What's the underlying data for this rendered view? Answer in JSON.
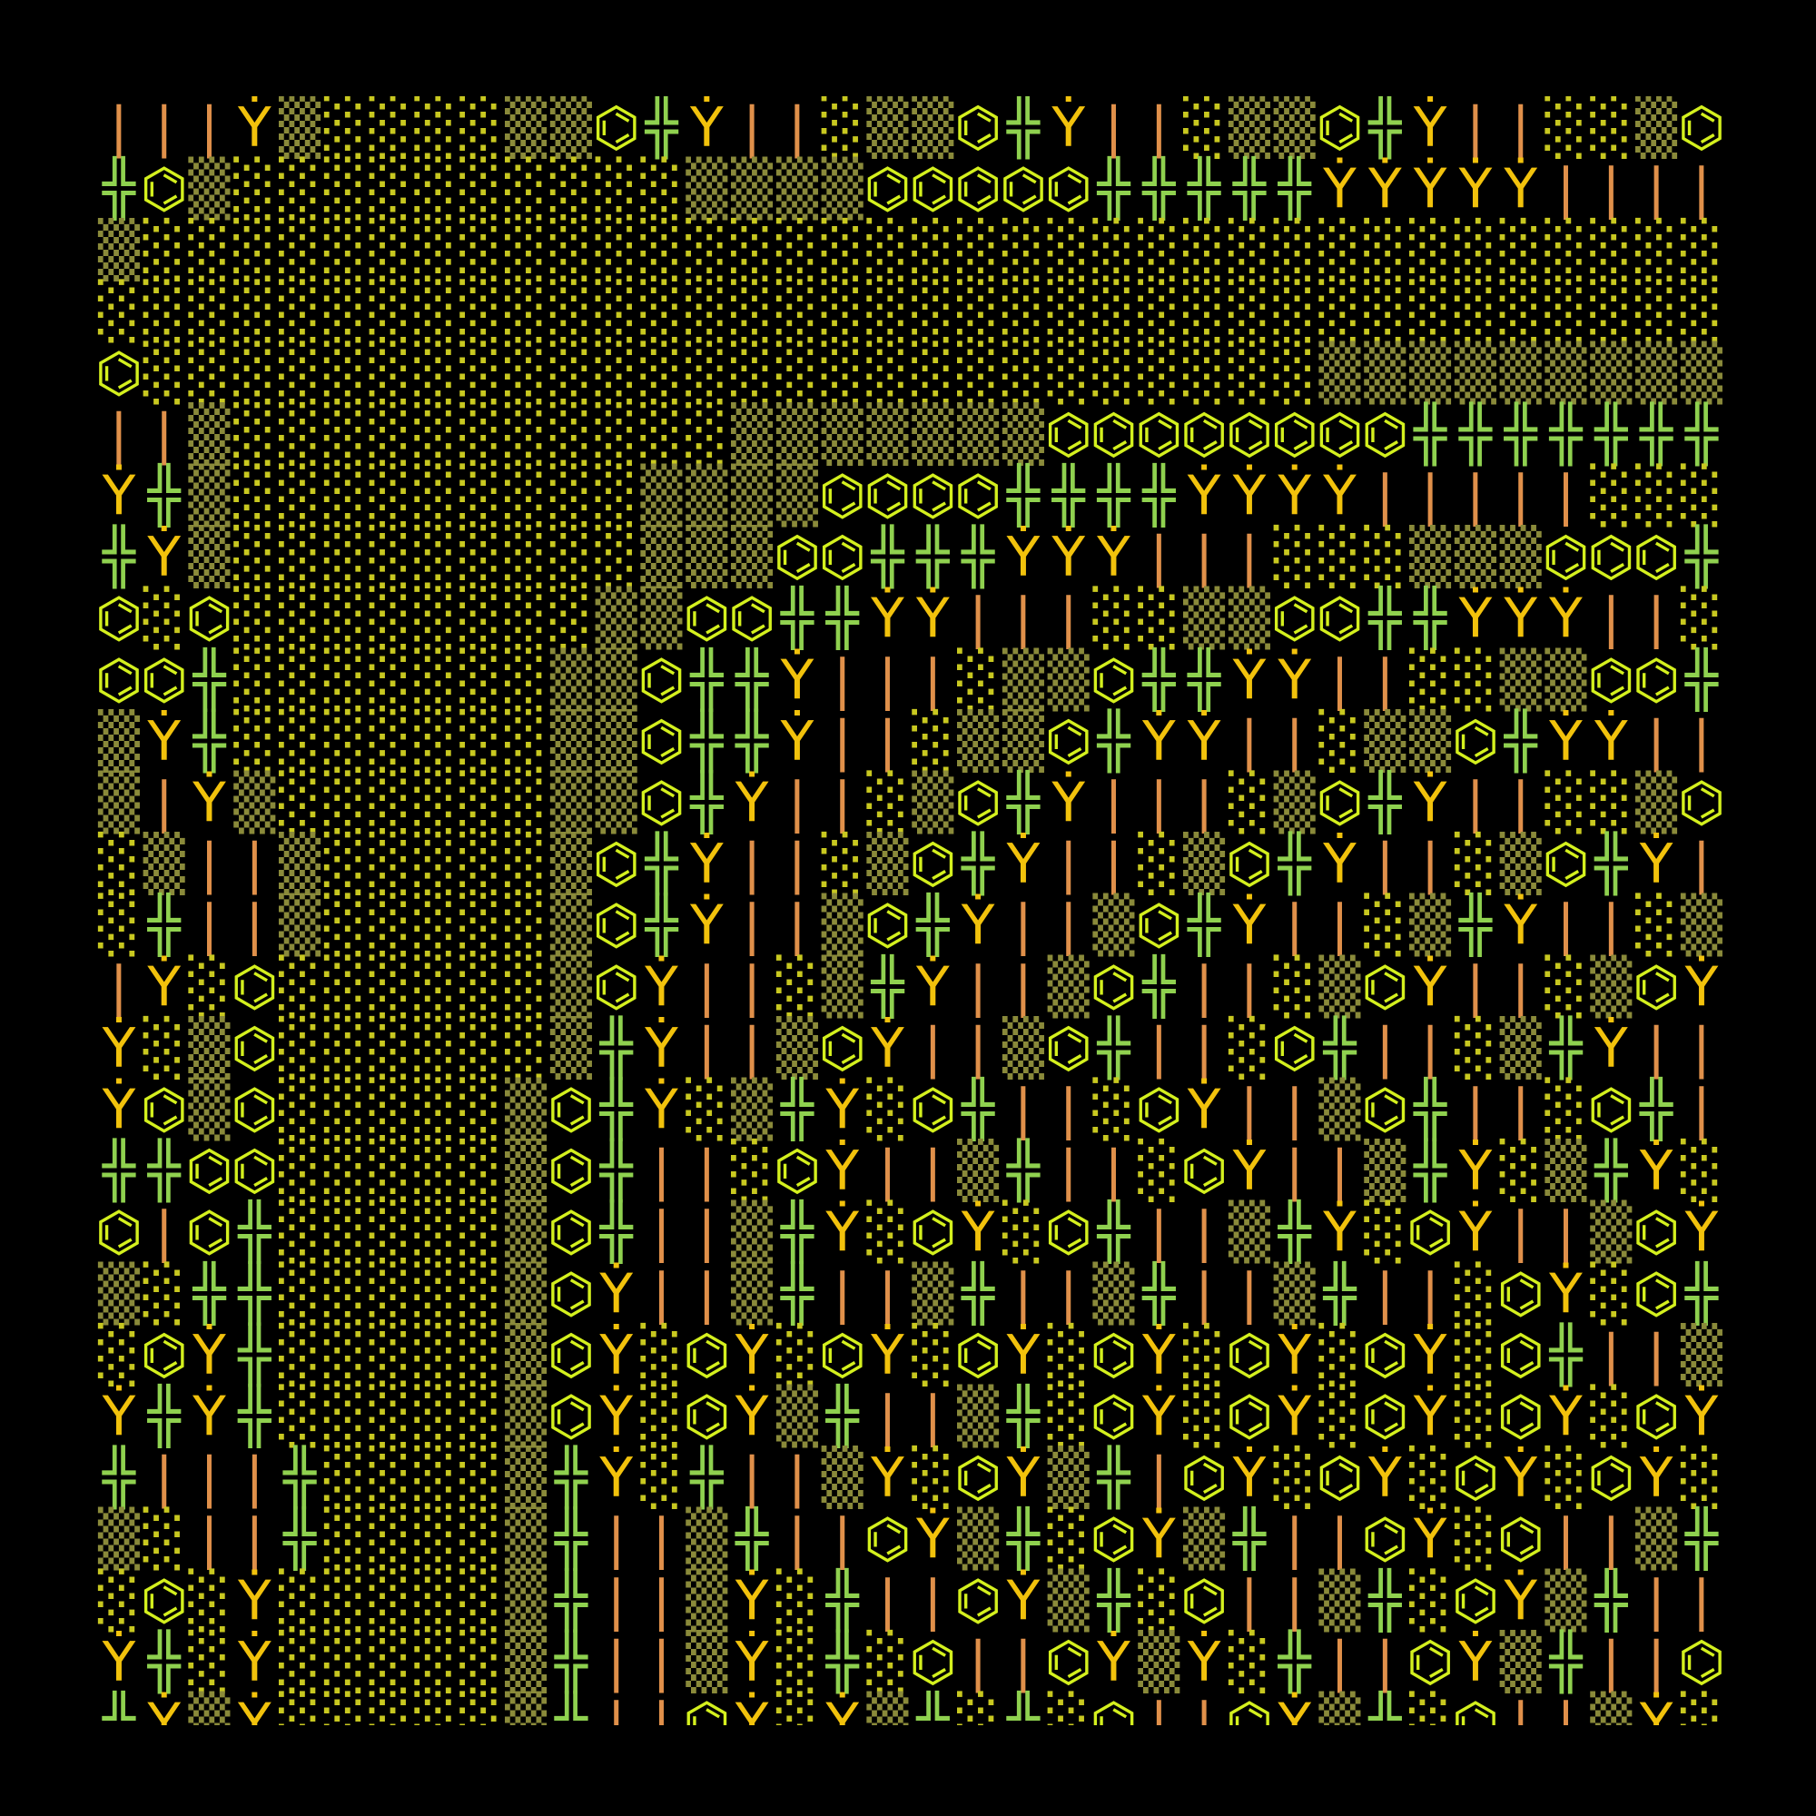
{
  "grid": {
    "colors": {
      "|": "#e0904a",
      "Ẏ": "#f2c20c",
      "╬": "#8fd14f",
      "⌬": "#d4f01e",
      "▒": "#8a8a3a",
      "░": "#c8c820"
    },
    "rows": [
      [
        "|",
        "|",
        "|",
        "Ẏ",
        "▒",
        "░",
        "░",
        "░",
        "░",
        "▒",
        "▒",
        "⌬",
        "╬",
        "Ẏ",
        "|",
        "|",
        "░",
        "▒",
        "▒",
        "⌬",
        "╬",
        "Ẏ",
        "|",
        "|",
        "░",
        "▒",
        "▒",
        "⌬",
        "╬",
        "Ẏ",
        "|",
        "|",
        "░",
        "░",
        "▒",
        "⌬"
      ],
      [
        "╬",
        "⌬",
        "▒",
        "░",
        "░",
        "░",
        "░",
        "░",
        "░",
        "░",
        "░",
        "░",
        "░",
        "▒",
        "▒",
        "▒",
        "▒",
        "⌬",
        "⌬",
        "⌬",
        "⌬",
        "⌬",
        "╬",
        "╬",
        "╬",
        "╬",
        "╬",
        "Ẏ",
        "Ẏ",
        "Ẏ",
        "Ẏ",
        "Ẏ",
        "|",
        "|",
        "|",
        "|"
      ],
      [
        "▒",
        "░",
        "░",
        "░",
        "░",
        "░",
        "░",
        "░",
        "░",
        "░",
        "░",
        "░",
        "░",
        "░",
        "░",
        "░",
        "░",
        "░",
        "░",
        "░",
        "░",
        "░",
        "░",
        "░",
        "░",
        "░",
        "░",
        "░",
        "░",
        "░",
        "░",
        "░",
        "░",
        "░",
        "░",
        "░"
      ],
      [
        "░",
        "░",
        "░",
        "░",
        "░",
        "░",
        "░",
        "░",
        "░",
        "░",
        "░",
        "░",
        "░",
        "░",
        "░",
        "░",
        "░",
        "░",
        "░",
        "░",
        "░",
        "░",
        "░",
        "░",
        "░",
        "░",
        "░",
        "░",
        "░",
        "░",
        "░",
        "░",
        "░",
        "░",
        "░",
        "░"
      ],
      [
        "⌬",
        "░",
        "░",
        "░",
        "░",
        "░",
        "░",
        "░",
        "░",
        "░",
        "░",
        "░",
        "░",
        "░",
        "░",
        "░",
        "░",
        "░",
        "░",
        "░",
        "░",
        "░",
        "░",
        "░",
        "░",
        "░",
        "░",
        "▒",
        "▒",
        "▒",
        "▒",
        "▒",
        "▒",
        "▒",
        "▒",
        "▒"
      ],
      [
        "|",
        "|",
        "▒",
        "░",
        "░",
        "░",
        "░",
        "░",
        "░",
        "░",
        "░",
        "░",
        "░",
        "░",
        "▒",
        "▒",
        "▒",
        "▒",
        "▒",
        "▒",
        "▒",
        "⌬",
        "⌬",
        "⌬",
        "⌬",
        "⌬",
        "⌬",
        "⌬",
        "⌬",
        "╬",
        "╬",
        "╬",
        "╬",
        "╬",
        "╬",
        "╬"
      ],
      [
        "Ẏ",
        "╬",
        "▒",
        "░",
        "░",
        "░",
        "░",
        "░",
        "░",
        "░",
        "░",
        "░",
        "▒",
        "▒",
        "▒",
        "▒",
        "⌬",
        "⌬",
        "⌬",
        "⌬",
        "╬",
        "╬",
        "╬",
        "╬",
        "Ẏ",
        "Ẏ",
        "Ẏ",
        "Ẏ",
        "|",
        "|",
        "|",
        "|",
        "|",
        "░",
        "░",
        "░"
      ],
      [
        "╬",
        "Ẏ",
        "▒",
        "░",
        "░",
        "░",
        "░",
        "░",
        "░",
        "░",
        "░",
        "░",
        "▒",
        "▒",
        "▒",
        "⌬",
        "⌬",
        "╬",
        "╬",
        "╬",
        "Ẏ",
        "Ẏ",
        "Ẏ",
        "|",
        "|",
        "|",
        "░",
        "░",
        "░",
        "▒",
        "▒",
        "▒",
        "⌬",
        "⌬",
        "⌬",
        "╬"
      ],
      [
        "⌬",
        "░",
        "⌬",
        "░",
        "░",
        "░",
        "░",
        "░",
        "░",
        "░",
        "░",
        "▒",
        "▒",
        "⌬",
        "⌬",
        "╬",
        "╬",
        "Ẏ",
        "Ẏ",
        "|",
        "|",
        "|",
        "░",
        "░",
        "▒",
        "▒",
        "⌬",
        "⌬",
        "╬",
        "╬",
        "Ẏ",
        "Ẏ",
        "Ẏ",
        "|",
        "|",
        "░"
      ],
      [
        "⌬",
        "⌬",
        "╬",
        "░",
        "░",
        "░",
        "░",
        "░",
        "░",
        "░",
        "▒",
        "▒",
        "⌬",
        "╬",
        "╬",
        "Ẏ",
        "|",
        "|",
        "|",
        "░",
        "▒",
        "▒",
        "⌬",
        "╬",
        "╬",
        "Ẏ",
        "Ẏ",
        "|",
        "|",
        "░",
        "░",
        "▒",
        "▒",
        "⌬",
        "⌬",
        "╬"
      ],
      [
        "▒",
        "Ẏ",
        "╬",
        "░",
        "░",
        "░",
        "░",
        "░",
        "░",
        "░",
        "▒",
        "▒",
        "⌬",
        "╬",
        "╬",
        "Ẏ",
        "|",
        "|",
        "░",
        "▒",
        "▒",
        "⌬",
        "╬",
        "Ẏ",
        "Ẏ",
        "|",
        "|",
        "░",
        "▒",
        "▒",
        "⌬",
        "╬",
        "Ẏ",
        "Ẏ",
        "|",
        "|"
      ],
      [
        "▒",
        "|",
        "Ẏ",
        "▒",
        "░",
        "░",
        "░",
        "░",
        "░",
        "░",
        "▒",
        "▒",
        "⌬",
        "╬",
        "Ẏ",
        "|",
        "|",
        "░",
        "▒",
        "⌬",
        "╬",
        "Ẏ",
        "|",
        "|",
        "|",
        "░",
        "▒",
        "⌬",
        "╬",
        "Ẏ",
        "|",
        "|",
        "░",
        "░",
        "▒",
        "⌬"
      ],
      [
        "░",
        "▒",
        "|",
        "|",
        "▒",
        "░",
        "░",
        "░",
        "░",
        "░",
        "▒",
        "⌬",
        "╬",
        "Ẏ",
        "|",
        "|",
        "░",
        "▒",
        "⌬",
        "╬",
        "Ẏ",
        "|",
        "|",
        "░",
        "▒",
        "⌬",
        "╬",
        "Ẏ",
        "|",
        "|",
        "░",
        "▒",
        "⌬",
        "╬",
        "Ẏ",
        "|"
      ],
      [
        "░",
        "╬",
        "|",
        "|",
        "▒",
        "░",
        "░",
        "░",
        "░",
        "░",
        "▒",
        "⌬",
        "╬",
        "Ẏ",
        "|",
        "|",
        "▒",
        "⌬",
        "╬",
        "Ẏ",
        "|",
        "|",
        "▒",
        "⌬",
        "╬",
        "Ẏ",
        "|",
        "|",
        "░",
        "▒",
        "╬",
        "Ẏ",
        "|",
        "|",
        "░",
        "▒"
      ],
      [
        "|",
        "Ẏ",
        "░",
        "⌬",
        "░",
        "░",
        "░",
        "░",
        "░",
        "░",
        "▒",
        "⌬",
        "Ẏ",
        "|",
        "|",
        "░",
        "▒",
        "╬",
        "Ẏ",
        "|",
        "|",
        "▒",
        "⌬",
        "╬",
        "|",
        "|",
        "░",
        "▒",
        "⌬",
        "Ẏ",
        "|",
        "|",
        "░",
        "▒",
        "⌬",
        "Ẏ"
      ],
      [
        "Ẏ",
        "░",
        "▒",
        "⌬",
        "░",
        "░",
        "░",
        "░",
        "░",
        "░",
        "▒",
        "╬",
        "Ẏ",
        "|",
        "|",
        "▒",
        "⌬",
        "Ẏ",
        "|",
        "|",
        "▒",
        "⌬",
        "╬",
        "|",
        "|",
        "░",
        "⌬",
        "╬",
        "|",
        "|",
        "░",
        "▒",
        "╬",
        "Ẏ",
        "|",
        "|"
      ],
      [
        "Ẏ",
        "⌬",
        "▒",
        "⌬",
        "░",
        "░",
        "░",
        "░",
        "░",
        "▒",
        "⌬",
        "╬",
        "Ẏ",
        "░",
        "▒",
        "╬",
        "Ẏ",
        "░",
        "⌬",
        "╬",
        "|",
        "|",
        "░",
        "⌬",
        "Ẏ",
        "|",
        "|",
        "▒",
        "⌬",
        "╬",
        "|",
        "|",
        "░",
        "⌬",
        "╬",
        "|"
      ],
      [
        "╬",
        "╬",
        "⌬",
        "⌬",
        "░",
        "░",
        "░",
        "░",
        "░",
        "▒",
        "⌬",
        "╬",
        "|",
        "|",
        "░",
        "⌬",
        "Ẏ",
        "|",
        "|",
        "▒",
        "╬",
        "|",
        "|",
        "░",
        "⌬",
        "Ẏ",
        "|",
        "|",
        "▒",
        "╬",
        "Ẏ",
        "░",
        "▒",
        "╬",
        "Ẏ",
        "░"
      ],
      [
        "⌬",
        "|",
        "⌬",
        "╬",
        "░",
        "░",
        "░",
        "░",
        "░",
        "▒",
        "⌬",
        "╬",
        "|",
        "|",
        "▒",
        "╬",
        "Ẏ",
        "░",
        "⌬",
        "Ẏ",
        "░",
        "⌬",
        "╬",
        "|",
        "|",
        "▒",
        "╬",
        "Ẏ",
        "░",
        "⌬",
        "Ẏ",
        "|",
        "|",
        "▒",
        "⌬",
        "Ẏ"
      ],
      [
        "▒",
        "░",
        "╬",
        "╬",
        "░",
        "░",
        "░",
        "░",
        "░",
        "▒",
        "⌬",
        "Ẏ",
        "|",
        "|",
        "▒",
        "╬",
        "|",
        "|",
        "▒",
        "╬",
        "|",
        "|",
        "▒",
        "╬",
        "|",
        "|",
        "▒",
        "╬",
        "|",
        "|",
        "░",
        "⌬",
        "Ẏ",
        "░",
        "⌬",
        "╬"
      ],
      [
        "░",
        "⌬",
        "Ẏ",
        "╬",
        "░",
        "░",
        "░",
        "░",
        "░",
        "▒",
        "⌬",
        "Ẏ",
        "░",
        "⌬",
        "Ẏ",
        "░",
        "⌬",
        "Ẏ",
        "░",
        "⌬",
        "Ẏ",
        "░",
        "⌬",
        "Ẏ",
        "░",
        "⌬",
        "Ẏ",
        "░",
        "⌬",
        "Ẏ",
        "░",
        "⌬",
        "╬",
        "|",
        "|",
        "▒"
      ],
      [
        "Ẏ",
        "╬",
        "Ẏ",
        "╬",
        "░",
        "░",
        "░",
        "░",
        "░",
        "▒",
        "⌬",
        "Ẏ",
        "░",
        "⌬",
        "Ẏ",
        "▒",
        "╬",
        "|",
        "|",
        "▒",
        "╬",
        "░",
        "⌬",
        "Ẏ",
        "░",
        "⌬",
        "Ẏ",
        "░",
        "⌬",
        "Ẏ",
        "░",
        "⌬",
        "Ẏ",
        "░",
        "⌬",
        "Ẏ"
      ],
      [
        "╬",
        "|",
        "|",
        "|",
        "╬",
        "░",
        "░",
        "░",
        "░",
        "▒",
        "╬",
        "Ẏ",
        "░",
        "╬",
        "|",
        "|",
        "▒",
        "Ẏ",
        "░",
        "⌬",
        "Ẏ",
        "▒",
        "╬",
        "|",
        "⌬",
        "Ẏ",
        "░",
        "⌬",
        "Ẏ",
        "░",
        "⌬",
        "Ẏ",
        "░",
        "⌬",
        "Ẏ",
        "░"
      ],
      [
        "▒",
        "░",
        "|",
        "|",
        "╬",
        "░",
        "░",
        "░",
        "░",
        "▒",
        "╬",
        "|",
        "|",
        "▒",
        "╬",
        "|",
        "|",
        "⌬",
        "Ẏ",
        "▒",
        "╬",
        "░",
        "⌬",
        "Ẏ",
        "▒",
        "╬",
        "|",
        "|",
        "⌬",
        "Ẏ",
        "░",
        "⌬",
        "|",
        "|",
        "▒",
        "╬"
      ],
      [
        "░",
        "⌬",
        "░",
        "Ẏ",
        "░",
        "░",
        "░",
        "░",
        "░",
        "▒",
        "╬",
        "|",
        "|",
        "▒",
        "Ẏ",
        "░",
        "╬",
        "|",
        "|",
        "⌬",
        "Ẏ",
        "▒",
        "╬",
        "░",
        "⌬",
        "|",
        "|",
        "▒",
        "╬",
        "░",
        "⌬",
        "Ẏ",
        "▒",
        "╬",
        "|",
        "|"
      ],
      [
        "Ẏ",
        "╬",
        "░",
        "Ẏ",
        "░",
        "░",
        "░",
        "░",
        "░",
        "▒",
        "╬",
        "|",
        "|",
        "▒",
        "Ẏ",
        "░",
        "╬",
        "░",
        "⌬",
        "|",
        "|",
        "⌬",
        "Ẏ",
        "▒",
        "Ẏ",
        "░",
        "╬",
        "|",
        "|",
        "⌬",
        "Ẏ",
        "▒",
        "╬",
        "|",
        "|",
        "⌬"
      ],
      [
        "╬",
        "Ẏ",
        "▒",
        "Ẏ",
        "░",
        "░",
        "░",
        "░",
        "░",
        "▒",
        "╬",
        "|",
        "|",
        "⌬",
        "Ẏ",
        "░",
        "Ẏ",
        "▒",
        "╬",
        "░",
        "╬",
        "░",
        "⌬",
        "|",
        "|",
        "⌬",
        "Ẏ",
        "▒",
        "╬",
        "░",
        "⌬",
        "|",
        "|",
        "▒",
        "Ẏ",
        "░"
      ]
    ]
  }
}
